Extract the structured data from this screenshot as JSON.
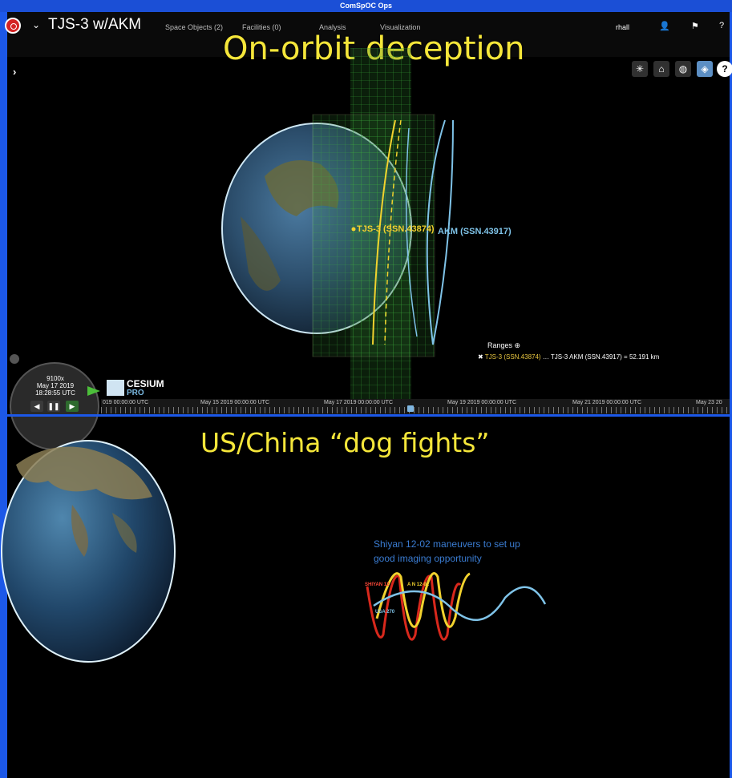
{
  "window": {
    "title": "ComSpOC Ops"
  },
  "header": {
    "scenario": "TJS-3 w/AKM",
    "menu": [
      "Space Objects (2)",
      "Facilities (0)",
      "Analysis",
      "Visualization"
    ],
    "user": "rhall"
  },
  "overlay": {
    "top_title": "On-orbit deception",
    "bottom_title": "US/China “dog fights”"
  },
  "icons": {
    "logo": "target-logo-icon",
    "toolbar": [
      "sun-icon",
      "home-icon",
      "globe-icon",
      "layers-icon",
      "help-icon"
    ],
    "header": [
      "user-icon",
      "flag-icon",
      "help-icon"
    ]
  },
  "scene": {
    "sat_tjs3": "TJS-3 (SSN.43874)",
    "sat_akm": "AKM (SSN.43917)",
    "ranges": {
      "title": "Ranges",
      "line_a": "TJS-3 (SSN.43874)",
      "line_b": "… TJS-3 AKM (SSN.43917) = 52.191 km"
    }
  },
  "clock": {
    "multiplier": "9100x",
    "date": "May 17 2019",
    "time": "18:28:55 UTC"
  },
  "brand": {
    "name": "CESIUM",
    "sub": "PRO"
  },
  "timeline": {
    "labels": [
      "019 00:00:00 UTC",
      "May 15 2019 00:00:00 UTC",
      "May 17 2019 00:00:00 UTC",
      "May 19 2019 00:00:00 UTC",
      "May 21 2019 00:00:00 UTC",
      "May 23 20"
    ]
  },
  "bottom": {
    "annotation_line1": "Shiyan 12-02 maneuvers to set up",
    "annotation_line2": "good imaging opportunity",
    "label_shiyan_a": "SHIYAN 12",
    "label_shiyan_b": "A N 12-02",
    "label_usa": "USA 270"
  },
  "colors": {
    "frame": "#1c58e8",
    "title_yellow": "#f5e63a",
    "orbit_yellow": "#f2d22e",
    "orbit_blue": "#7fc3e8",
    "orbit_red": "#d8281c",
    "annotation_blue": "#3a7cd2"
  }
}
